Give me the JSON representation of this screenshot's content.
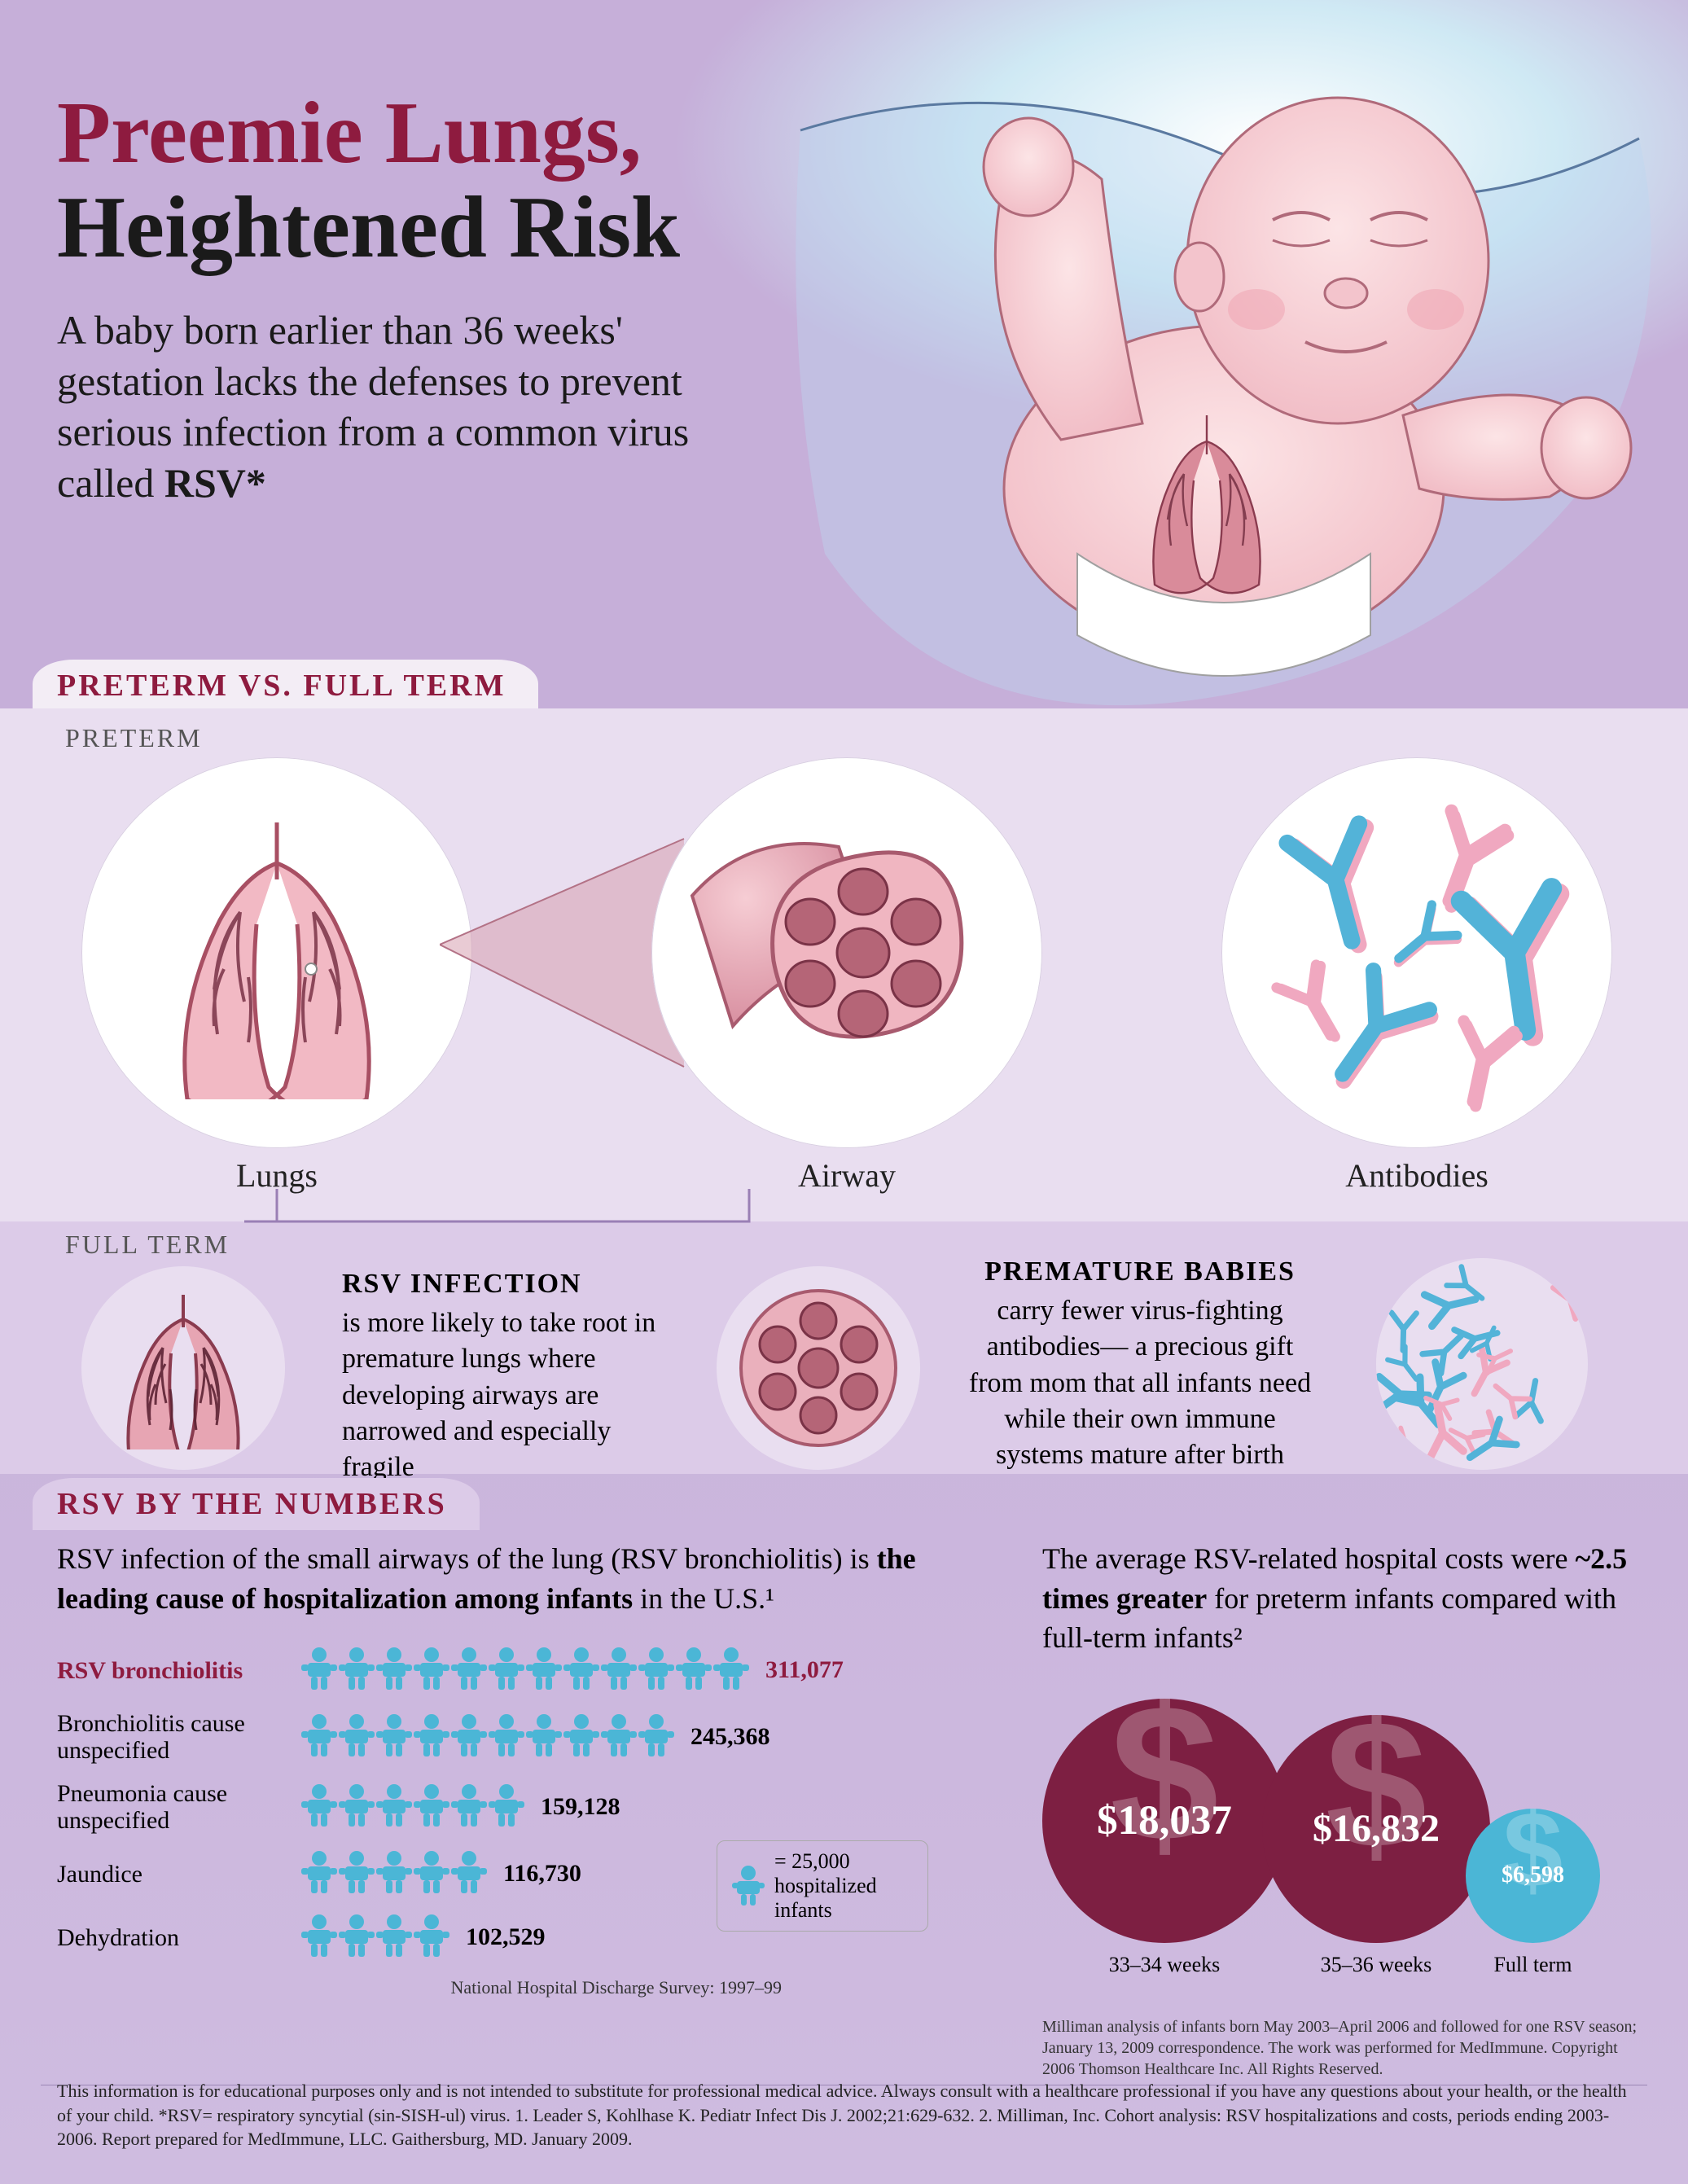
{
  "colors": {
    "bg_lavender": "#cdb9dd",
    "panel_light": "#e9def0",
    "panel_lighter": "#f3edf5",
    "burgundy": "#8e1b3f",
    "text_dark": "#1a1a1a",
    "text_body": "#2a2a2a",
    "cyan": "#4bb6d6",
    "pink_flesh": "#f4bfc6",
    "pink_deep": "#c77a8c",
    "airway_pink": "#e59aa4",
    "antibody_blue": "#53b3d8",
    "antibody_pink": "#f0a8c0",
    "cost_dark": "#7d1f42",
    "cost_light": "#4bb6d6"
  },
  "header": {
    "title_line1": "Preemie Lungs,",
    "title_line2": "Heightened Risk",
    "intro_a": "A baby born earlier than 36 weeks' gestation lacks the defenses to prevent serious infection from a common virus called ",
    "intro_b": "RSV*"
  },
  "section1": {
    "title": "PRETERM VS. FULL TERM",
    "preterm_label": "PRETERM",
    "fullterm_label": "FULL TERM",
    "circles": [
      "Lungs",
      "Airway",
      "Antibodies"
    ],
    "full_rsv_h": "RSV INFECTION",
    "full_rsv_t": "is more likely to take root in premature lungs where developing airways are narrowed and especially fragile",
    "full_ab_h": "PREMATURE BABIES",
    "full_ab_t": "carry fewer virus-fighting antibodies— a precious gift from mom that all infants need while their own immune systems mature after birth"
  },
  "section2": {
    "title": "RSV BY THE NUMBERS",
    "left_lead_a": "RSV infection of the small airways of the lung (RSV bronchiolitis) is ",
    "left_lead_b": "the leading cause of hospitalization among infants",
    "left_lead_c": " in the U.S.¹",
    "icon_unit": 25000,
    "bars": [
      {
        "label": "RSV bronchiolitis",
        "value": 311077,
        "value_text": "311,077",
        "highlight": true
      },
      {
        "label": "Bronchiolitis cause unspecified",
        "value": 245368,
        "value_text": "245,368",
        "highlight": false
      },
      {
        "label": "Pneumonia cause unspecified",
        "value": 159128,
        "value_text": "159,128",
        "highlight": false
      },
      {
        "label": "Jaundice",
        "value": 116730,
        "value_text": "116,730",
        "highlight": false
      },
      {
        "label": "Dehydration",
        "value": 102529,
        "value_text": "102,529",
        "highlight": false
      }
    ],
    "legend": "= 25,000 hospitalized infants",
    "source_left": "National Hospital Discharge Survey: 1997–99",
    "right_lead_a": "The average RSV-related hospital costs were ",
    "right_lead_b": "~2.5 times greater",
    "right_lead_c": " for preterm infants compared with full-term infants²",
    "bubbles": [
      {
        "amount": "$18,037",
        "label": "33–34 weeks",
        "diameter": 300,
        "color": "#7d1f42"
      },
      {
        "amount": "$16,832",
        "label": "35–36 weeks",
        "diameter": 280,
        "color": "#7d1f42"
      },
      {
        "amount": "$6,598",
        "label": "Full term",
        "diameter": 165,
        "color": "#4bb6d6"
      }
    ],
    "source_right": "Milliman analysis of infants born May 2003–April 2006 and followed for one RSV season; January 13, 2009 correspondence. The work was performed for MedImmune. Copyright 2006 Thomson Healthcare Inc. All Rights Reserved."
  },
  "footer": "This information is for educational purposes only and is not intended to substitute for professional medical advice. Always consult with a healthcare professional if you have any questions about your health, or the health of your child. *RSV= respiratory syncytial (sin-SISH-ul) virus. 1. Leader S, Kohlhase K. Pediatr Infect Dis J. 2002;21:629-632. 2. Milliman, Inc. Cohort analysis: RSV hospitalizations and costs, periods ending 2003-2006. Report prepared for MedImmune, LLC. Gaithersburg, MD. January 2009."
}
